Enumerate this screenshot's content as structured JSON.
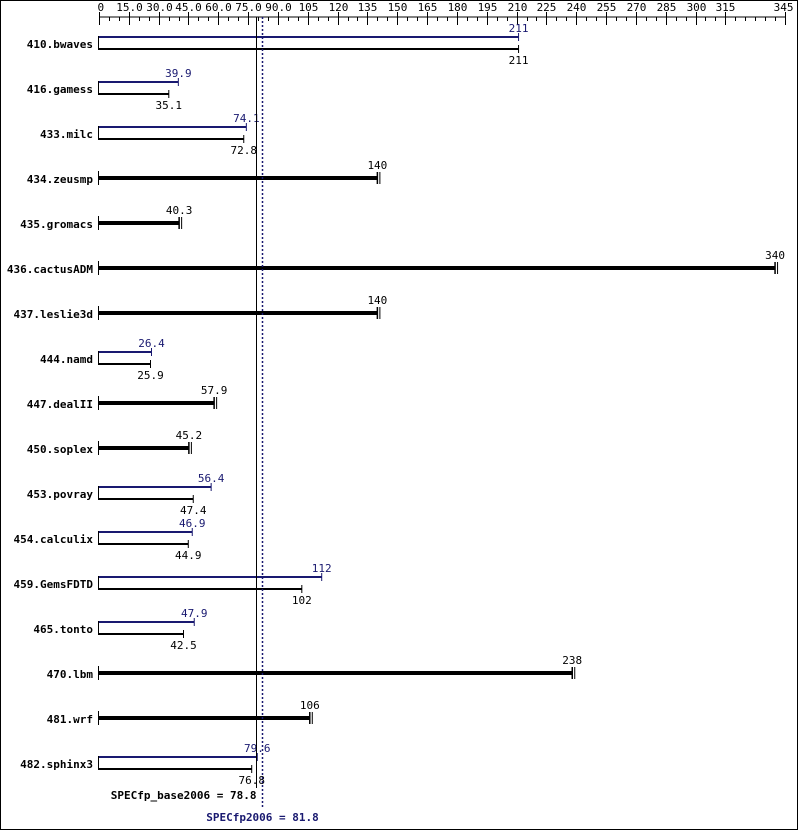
{
  "colors": {
    "base": "#000000",
    "peak": "#191970",
    "background": "#ffffff",
    "frame": "#000000"
  },
  "chart_data": {
    "type": "bar",
    "orientation": "horizontal",
    "xlim": [
      0,
      345
    ],
    "ticks": [
      "0",
      "15.0",
      "30.0",
      "45.0",
      "60.0",
      "75.0",
      "90.0",
      "105",
      "120",
      "135",
      "150",
      "165",
      "180",
      "195",
      "210",
      "225",
      "240",
      "255",
      "270",
      "285",
      "300",
      "315",
      "345"
    ],
    "tick_values": [
      0,
      15,
      30,
      45,
      60,
      75,
      90,
      105,
      120,
      135,
      150,
      165,
      180,
      195,
      210,
      225,
      240,
      255,
      270,
      285,
      300,
      315,
      345
    ],
    "minor_step": 5,
    "categories": [
      "410.bwaves",
      "416.gamess",
      "433.milc",
      "434.zeusmp",
      "435.gromacs",
      "436.cactusADM",
      "437.leslie3d",
      "444.namd",
      "447.dealII",
      "450.soplex",
      "453.povray",
      "454.calculix",
      "459.GemsFDTD",
      "465.tonto",
      "470.lbm",
      "481.wrf",
      "482.sphinx3"
    ],
    "series": [
      {
        "name": "SPECfp_base2006",
        "values": [
          211,
          35.1,
          72.8,
          140,
          40.3,
          340,
          140,
          25.9,
          57.9,
          45.2,
          47.4,
          44.9,
          102,
          42.5,
          238,
          106,
          76.8
        ]
      },
      {
        "name": "SPECfp2006",
        "values": [
          211,
          39.9,
          74.1,
          null,
          null,
          null,
          null,
          26.4,
          null,
          null,
          56.4,
          46.9,
          112,
          47.9,
          null,
          null,
          79.6
        ]
      }
    ],
    "value_labels": {
      "base": [
        "211",
        "35.1",
        "72.8",
        "140",
        "40.3",
        "340",
        "140",
        "25.9",
        "57.9",
        "45.2",
        "47.4",
        "44.9",
        "102",
        "42.5",
        "238",
        "106",
        "76.8"
      ],
      "peak": [
        "211",
        "39.9",
        "74.1",
        "",
        "",
        "",
        "",
        "26.4",
        "",
        "",
        "56.4",
        "46.9",
        "112",
        "47.9",
        "",
        "",
        "79.6"
      ]
    },
    "reference_lines": [
      {
        "label": "SPECfp_base2006 = 78.8",
        "value": 78.8,
        "style": "solid"
      },
      {
        "label": "SPECfp2006 = 81.8",
        "value": 81.8,
        "style": "dotted"
      }
    ]
  }
}
